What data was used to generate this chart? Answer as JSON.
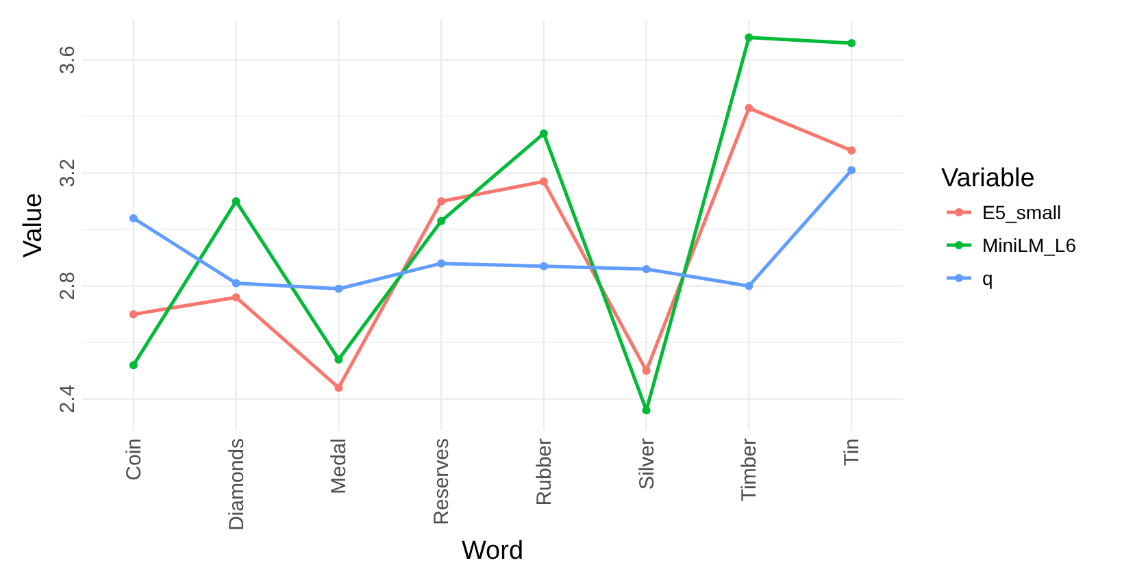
{
  "chart_data": {
    "type": "line",
    "xlabel": "Word",
    "ylabel": "Value",
    "legend_title": "Variable",
    "legend": "right",
    "grid": true,
    "marker": "circle",
    "line_style": "solid",
    "categories": [
      "Coin",
      "Diamonds",
      "Medal",
      "Reserves",
      "Rubber",
      "Silver",
      "Timber",
      "Tin"
    ],
    "ylim": [
      2.29,
      3.74
    ],
    "yticks": [
      2.4,
      {
        "value": 2.6,
        "label": null
      },
      2.8,
      {
        "value": 3.0,
        "label": null
      },
      3.2,
      {
        "value": 3.4,
        "label": null
      },
      3.6
    ],
    "series": [
      {
        "name": "E5_small",
        "color": "#f8766d",
        "values": [
          2.7,
          2.76,
          2.44,
          3.1,
          3.17,
          2.5,
          3.43,
          3.28
        ]
      },
      {
        "name": "MiniLM_L6",
        "color": "#00ba38",
        "values": [
          2.52,
          3.1,
          2.54,
          3.03,
          3.34,
          2.36,
          3.68,
          3.66
        ]
      },
      {
        "name": "q",
        "color": "#619cff",
        "values": [
          3.04,
          2.81,
          2.79,
          2.88,
          2.87,
          2.86,
          2.8,
          3.21
        ]
      }
    ]
  }
}
